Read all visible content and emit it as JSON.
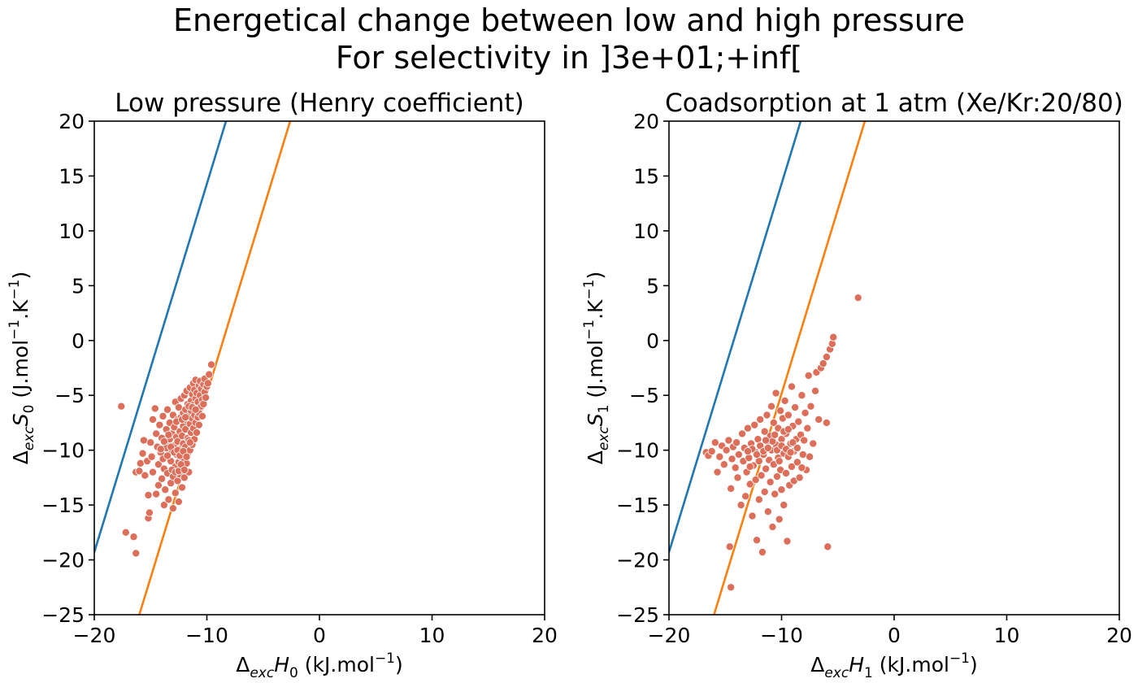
{
  "figure": {
    "title_line1": "Energetical change between low and high pressure",
    "title_line2": "For selectivity in ]3e+01;+inf["
  },
  "colors": {
    "line1": "#1f77b4",
    "line2": "#ff7f0e",
    "points": "#dd6e59"
  },
  "chart_data": [
    {
      "type": "scatter",
      "title": "Low pressure (Henry coefficient)",
      "xlabel": "Δ_exc H_0 (kJ.mol^-1)",
      "ylabel": "Δ_exc S_0 (J.mol^-1.K^-1)",
      "xlabel_parts": {
        "delta": "Δ",
        "sub1": "exc",
        "var": "H",
        "sub2": "0",
        "unit": " (kJ.mol",
        "sup": "−1",
        "close": ")"
      },
      "ylabel_parts": {
        "delta": "Δ",
        "sub1": "exc",
        "var": "S",
        "sub2": "0",
        "unit": " (J.mol",
        "sup": "−1",
        "mid": ".K",
        "sup2": "−1",
        "close": ")"
      },
      "xlim": [
        -20,
        20
      ],
      "ylim": [
        -25,
        20
      ],
      "xticks": [
        -20,
        -10,
        0,
        10,
        20
      ],
      "yticks": [
        -25,
        -20,
        -15,
        -10,
        -5,
        0,
        5,
        10,
        15,
        20
      ],
      "xtick_labels": [
        "−20",
        "−10",
        "0",
        "10",
        "20"
      ],
      "ytick_labels": [
        "−25",
        "−20",
        "−15",
        "−10",
        "−5",
        "0",
        "5",
        "10",
        "15",
        "20"
      ],
      "grid": false,
      "lines": [
        {
          "color": "blue",
          "points": [
            [
              -20,
              -19.3
            ],
            [
              -8.3,
              20
            ]
          ]
        },
        {
          "color": "orange",
          "points": [
            [
              -16.0,
              -25
            ],
            [
              -2.6,
              20
            ]
          ]
        }
      ],
      "points": [
        [
          -17.6,
          -6.0
        ],
        [
          -17.2,
          -17.5
        ],
        [
          -16.5,
          -17.9
        ],
        [
          -16.3,
          -19.4
        ],
        [
          -16.3,
          -12.0
        ],
        [
          -16.0,
          -11.9
        ],
        [
          -15.9,
          -11.2
        ],
        [
          -15.7,
          -10.3
        ],
        [
          -15.6,
          -9.1
        ],
        [
          -15.5,
          -12.3
        ],
        [
          -15.3,
          -11.0
        ],
        [
          -15.2,
          -14.1
        ],
        [
          -15.2,
          -16.2
        ],
        [
          -15.1,
          -15.7
        ],
        [
          -15.0,
          -9.3
        ],
        [
          -14.9,
          -10.6
        ],
        [
          -14.8,
          -12.0
        ],
        [
          -14.8,
          -7.2
        ],
        [
          -14.6,
          -6.2
        ],
        [
          -14.5,
          -8.5
        ],
        [
          -14.5,
          -14.0
        ],
        [
          -14.4,
          -9.7
        ],
        [
          -14.3,
          -11.3
        ],
        [
          -14.3,
          -13.2
        ],
        [
          -14.2,
          -7.7
        ],
        [
          -14.1,
          -10.2
        ],
        [
          -14.0,
          -12.6
        ],
        [
          -14.0,
          -8.9
        ],
        [
          -13.9,
          -6.9
        ],
        [
          -13.8,
          -15.0
        ],
        [
          -13.8,
          -11.7
        ],
        [
          -13.7,
          -9.4
        ],
        [
          -13.7,
          -13.6
        ],
        [
          -13.6,
          -8.1
        ],
        [
          -13.6,
          -10.7
        ],
        [
          -13.5,
          -6.3
        ],
        [
          -13.5,
          -12.1
        ],
        [
          -13.4,
          -14.5
        ],
        [
          -13.3,
          -9.0
        ],
        [
          -13.3,
          -7.5
        ],
        [
          -13.2,
          -11.0
        ],
        [
          -13.2,
          -13.0
        ],
        [
          -13.1,
          -8.5
        ],
        [
          -13.1,
          -10.1
        ],
        [
          -13.0,
          -6.8
        ],
        [
          -13.0,
          -12.4
        ],
        [
          -13.0,
          -15.3
        ],
        [
          -12.9,
          -9.6
        ],
        [
          -12.9,
          -7.9
        ],
        [
          -12.8,
          -11.5
        ],
        [
          -12.8,
          -5.6
        ],
        [
          -12.8,
          -13.9
        ],
        [
          -12.7,
          -8.8
        ],
        [
          -12.7,
          -10.4
        ],
        [
          -12.6,
          -7.2
        ],
        [
          -12.6,
          -12.8
        ],
        [
          -12.6,
          -9.2
        ],
        [
          -12.5,
          -6.1
        ],
        [
          -12.5,
          -11.1
        ],
        [
          -12.5,
          -14.7
        ],
        [
          -12.4,
          -8.3
        ],
        [
          -12.4,
          -9.9
        ],
        [
          -12.4,
          -12.2
        ],
        [
          -12.3,
          -7.0
        ],
        [
          -12.3,
          -10.6
        ],
        [
          -12.3,
          -5.3
        ],
        [
          -12.2,
          -8.7
        ],
        [
          -12.2,
          -13.4
        ],
        [
          -12.2,
          -11.6
        ],
        [
          -12.1,
          -6.6
        ],
        [
          -12.1,
          -9.4
        ],
        [
          -12.1,
          -7.8
        ],
        [
          -12.0,
          -10.9
        ],
        [
          -12.0,
          -5.0
        ],
        [
          -12.0,
          -12.5
        ],
        [
          -11.9,
          -8.1
        ],
        [
          -11.9,
          -9.7
        ],
        [
          -11.9,
          -6.3
        ],
        [
          -11.8,
          -7.3
        ],
        [
          -11.8,
          -11.2
        ],
        [
          -11.8,
          -4.6
        ],
        [
          -11.7,
          -8.9
        ],
        [
          -11.7,
          -10.3
        ],
        [
          -11.7,
          -5.8
        ],
        [
          -11.6,
          -6.9
        ],
        [
          -11.6,
          -9.1
        ],
        [
          -11.6,
          -12.0
        ],
        [
          -11.5,
          -4.3
        ],
        [
          -11.5,
          -7.6
        ],
        [
          -11.5,
          -10.0
        ],
        [
          -11.4,
          -5.5
        ],
        [
          -11.4,
          -8.4
        ],
        [
          -11.4,
          -6.4
        ],
        [
          -11.3,
          -9.5
        ],
        [
          -11.3,
          -4.9
        ],
        [
          -11.3,
          -7.1
        ],
        [
          -11.2,
          -3.9
        ],
        [
          -11.2,
          -8.0
        ],
        [
          -11.2,
          -5.9
        ],
        [
          -11.1,
          -6.8
        ],
        [
          -11.1,
          -9.0
        ],
        [
          -11.1,
          -4.5
        ],
        [
          -11.0,
          -7.5
        ],
        [
          -11.0,
          -5.3
        ],
        [
          -11.0,
          -3.6
        ],
        [
          -10.9,
          -6.2
        ],
        [
          -10.9,
          -8.4
        ],
        [
          -10.9,
          -4.8
        ],
        [
          -10.8,
          -7.0
        ],
        [
          -10.8,
          -5.6
        ],
        [
          -10.7,
          -4.1
        ],
        [
          -10.7,
          -6.6
        ],
        [
          -10.7,
          -7.7
        ],
        [
          -10.6,
          -5.0
        ],
        [
          -10.6,
          -3.7
        ],
        [
          -10.5,
          -6.0
        ],
        [
          -10.5,
          -4.4
        ],
        [
          -10.4,
          -5.4
        ],
        [
          -10.4,
          -6.9
        ],
        [
          -10.3,
          -4.0
        ],
        [
          -10.3,
          -5.8
        ],
        [
          -10.2,
          -4.7
        ],
        [
          -10.2,
          -3.5
        ],
        [
          -10.1,
          -5.2
        ],
        [
          -10.0,
          -4.2
        ],
        [
          -9.9,
          -3.9
        ],
        [
          -9.8,
          -3.1
        ],
        [
          -9.6,
          -2.2
        ],
        [
          -13.6,
          -9.8
        ],
        [
          -13.2,
          -9.7
        ],
        [
          -12.9,
          -10.2
        ],
        [
          -12.6,
          -10.0
        ],
        [
          -12.4,
          -10.5
        ],
        [
          -12.1,
          -10.1
        ],
        [
          -13.8,
          -9.2
        ],
        [
          -13.4,
          -8.6
        ],
        [
          -12.7,
          -7.4
        ],
        [
          -12.2,
          -7.2
        ],
        [
          -11.9,
          -7.0
        ],
        [
          -11.6,
          -6.0
        ],
        [
          -11.3,
          -6.1
        ],
        [
          -11.0,
          -6.3
        ],
        [
          -14.1,
          -9.9
        ],
        [
          -13.9,
          -10.8
        ],
        [
          -13.5,
          -10.5
        ],
        [
          -13.1,
          -11.8
        ],
        [
          -12.8,
          -12.0
        ],
        [
          -12.5,
          -11.9
        ],
        [
          -12.3,
          -11.3
        ],
        [
          -12.0,
          -11.8
        ],
        [
          -11.8,
          -10.6
        ],
        [
          -11.5,
          -9.3
        ]
      ]
    },
    {
      "type": "scatter",
      "title": "Coadsorption at 1 atm (Xe/Kr:20/80)",
      "xlabel": "Δ_exc H_1 (kJ.mol^-1)",
      "ylabel": "Δ_exc S_1 (J.mol^-1.K^-1)",
      "xlabel_parts": {
        "delta": "Δ",
        "sub1": "exc",
        "var": "H",
        "sub2": "1",
        "unit": " (kJ.mol",
        "sup": "−1",
        "close": ")"
      },
      "ylabel_parts": {
        "delta": "Δ",
        "sub1": "exc",
        "var": "S",
        "sub2": "1",
        "unit": " (J.mol",
        "sup": "−1",
        "mid": ".K",
        "sup2": "−1",
        "close": ")"
      },
      "xlim": [
        -20,
        20
      ],
      "ylim": [
        -25,
        20
      ],
      "xticks": [
        -20,
        -10,
        0,
        10,
        20
      ],
      "yticks": [
        -25,
        -20,
        -15,
        -10,
        -5,
        0,
        5,
        10,
        15,
        20
      ],
      "xtick_labels": [
        "−20",
        "−10",
        "0",
        "10",
        "20"
      ],
      "ytick_labels": [
        "−25",
        "−20",
        "−15",
        "−10",
        "−5",
        "0",
        "5",
        "10",
        "15",
        "20"
      ],
      "grid": false,
      "lines": [
        {
          "color": "blue",
          "points": [
            [
              -20,
              -19.3
            ],
            [
              -8.3,
              20
            ]
          ]
        },
        {
          "color": "orange",
          "points": [
            [
              -16.0,
              -25
            ],
            [
              -2.6,
              20
            ]
          ]
        }
      ],
      "points": [
        [
          -16.7,
          -10.2
        ],
        [
          -16.5,
          -10.5
        ],
        [
          -16.2,
          -10.1
        ],
        [
          -15.9,
          -9.3
        ],
        [
          -15.7,
          -12.0
        ],
        [
          -15.5,
          -10.6
        ],
        [
          -15.3,
          -9.6
        ],
        [
          -15.1,
          -11.3
        ],
        [
          -14.9,
          -10.0
        ],
        [
          -14.7,
          -9.1
        ],
        [
          -14.6,
          -18.8
        ],
        [
          -14.5,
          -22.5
        ],
        [
          -14.5,
          -13.5
        ],
        [
          -14.4,
          -10.8
        ],
        [
          -14.3,
          -9.7
        ],
        [
          -14.1,
          -11.6
        ],
        [
          -14.0,
          -9.3
        ],
        [
          -13.9,
          -12.5
        ],
        [
          -13.8,
          -10.4
        ],
        [
          -13.6,
          -15.0
        ],
        [
          -13.5,
          -8.5
        ],
        [
          -13.4,
          -11.0
        ],
        [
          -13.3,
          -9.8
        ],
        [
          -13.2,
          -14.2
        ],
        [
          -13.1,
          -12.0
        ],
        [
          -13.0,
          -8.0
        ],
        [
          -12.9,
          -10.7
        ],
        [
          -12.8,
          -13.1
        ],
        [
          -12.7,
          -9.4
        ],
        [
          -12.6,
          -16.0
        ],
        [
          -12.5,
          -11.4
        ],
        [
          -12.4,
          -7.7
        ],
        [
          -12.3,
          -10.2
        ],
        [
          -12.3,
          -12.7
        ],
        [
          -12.2,
          -18.2
        ],
        [
          -12.1,
          -9.0
        ],
        [
          -12.0,
          -14.5
        ],
        [
          -12.0,
          -11.0
        ],
        [
          -11.9,
          -7.2
        ],
        [
          -11.8,
          -9.7
        ],
        [
          -11.8,
          -12.3
        ],
        [
          -11.7,
          -19.3
        ],
        [
          -11.6,
          -10.4
        ],
        [
          -11.5,
          -8.3
        ],
        [
          -11.5,
          -13.8
        ],
        [
          -11.4,
          -11.7
        ],
        [
          -11.3,
          -6.8
        ],
        [
          -11.3,
          -9.2
        ],
        [
          -11.2,
          -15.6
        ],
        [
          -11.1,
          -10.9
        ],
        [
          -11.0,
          -8.7
        ],
        [
          -11.0,
          -12.9
        ],
        [
          -10.9,
          -6.0
        ],
        [
          -10.9,
          -10.0
        ],
        [
          -10.8,
          -17.0
        ],
        [
          -10.7,
          -11.3
        ],
        [
          -10.7,
          -7.5
        ],
        [
          -10.6,
          -14.0
        ],
        [
          -10.5,
          -9.5
        ],
        [
          -10.5,
          -4.8
        ],
        [
          -10.4,
          -12.4
        ],
        [
          -10.3,
          -8.0
        ],
        [
          -10.3,
          -10.7
        ],
        [
          -10.2,
          -16.3
        ],
        [
          -10.1,
          -6.4
        ],
        [
          -10.1,
          -11.8
        ],
        [
          -10.0,
          -9.0
        ],
        [
          -10.0,
          -13.6
        ],
        [
          -9.9,
          -7.1
        ],
        [
          -9.8,
          -10.3
        ],
        [
          -9.8,
          -15.0
        ],
        [
          -9.7,
          -5.5
        ],
        [
          -9.6,
          -12.1
        ],
        [
          -9.6,
          -8.5
        ],
        [
          -9.5,
          -18.3
        ],
        [
          -9.4,
          -10.6
        ],
        [
          -9.4,
          -6.8
        ],
        [
          -9.3,
          -13.2
        ],
        [
          -9.2,
          -9.4
        ],
        [
          -9.1,
          -11.5
        ],
        [
          -9.1,
          -4.2
        ],
        [
          -9.0,
          -7.8
        ],
        [
          -8.9,
          -12.8
        ],
        [
          -8.9,
          -10.1
        ],
        [
          -8.8,
          -6.1
        ],
        [
          -8.7,
          -9.0
        ],
        [
          -8.6,
          -11.1
        ],
        [
          -8.5,
          -7.4
        ],
        [
          -8.4,
          -12.5
        ],
        [
          -8.3,
          -8.6
        ],
        [
          -8.2,
          -5.0
        ],
        [
          -8.1,
          -10.4
        ],
        [
          -8.0,
          -9.1
        ],
        [
          -7.9,
          -6.6
        ],
        [
          -7.8,
          -11.8
        ],
        [
          -7.7,
          -8.0
        ],
        [
          -7.6,
          -3.2
        ],
        [
          -7.5,
          -10.6
        ],
        [
          -7.4,
          -6.0
        ],
        [
          -7.2,
          -9.4
        ],
        [
          -7.0,
          -4.6
        ],
        [
          -6.9,
          -2.9
        ],
        [
          -6.7,
          -7.2
        ],
        [
          -6.5,
          -2.5
        ],
        [
          -6.3,
          -2.1
        ],
        [
          -6.0,
          -1.5
        ],
        [
          -6.0,
          -7.5
        ],
        [
          -5.9,
          -18.8
        ],
        [
          -5.7,
          -0.8
        ],
        [
          -5.5,
          -0.3
        ],
        [
          -5.4,
          0.3
        ],
        [
          -3.2,
          3.9
        ],
        [
          -12.6,
          -9.9
        ],
        [
          -12.2,
          -10.4
        ],
        [
          -11.9,
          -9.6
        ],
        [
          -11.6,
          -10.1
        ],
        [
          -11.2,
          -9.8
        ],
        [
          -10.8,
          -9.2
        ],
        [
          -10.4,
          -10.0
        ],
        [
          -10.0,
          -9.6
        ],
        [
          -9.6,
          -9.9
        ],
        [
          -9.2,
          -10.2
        ],
        [
          -13.0,
          -10.1
        ],
        [
          -12.8,
          -11.5
        ],
        [
          -11.4,
          -9.1
        ],
        [
          -10.6,
          -8.6
        ],
        [
          -10.2,
          -11.0
        ],
        [
          -9.8,
          -8.3
        ],
        [
          -9.4,
          -8.1
        ],
        [
          -9.0,
          -9.3
        ],
        [
          -8.6,
          -9.8
        ],
        [
          -8.2,
          -11.6
        ]
      ]
    }
  ]
}
